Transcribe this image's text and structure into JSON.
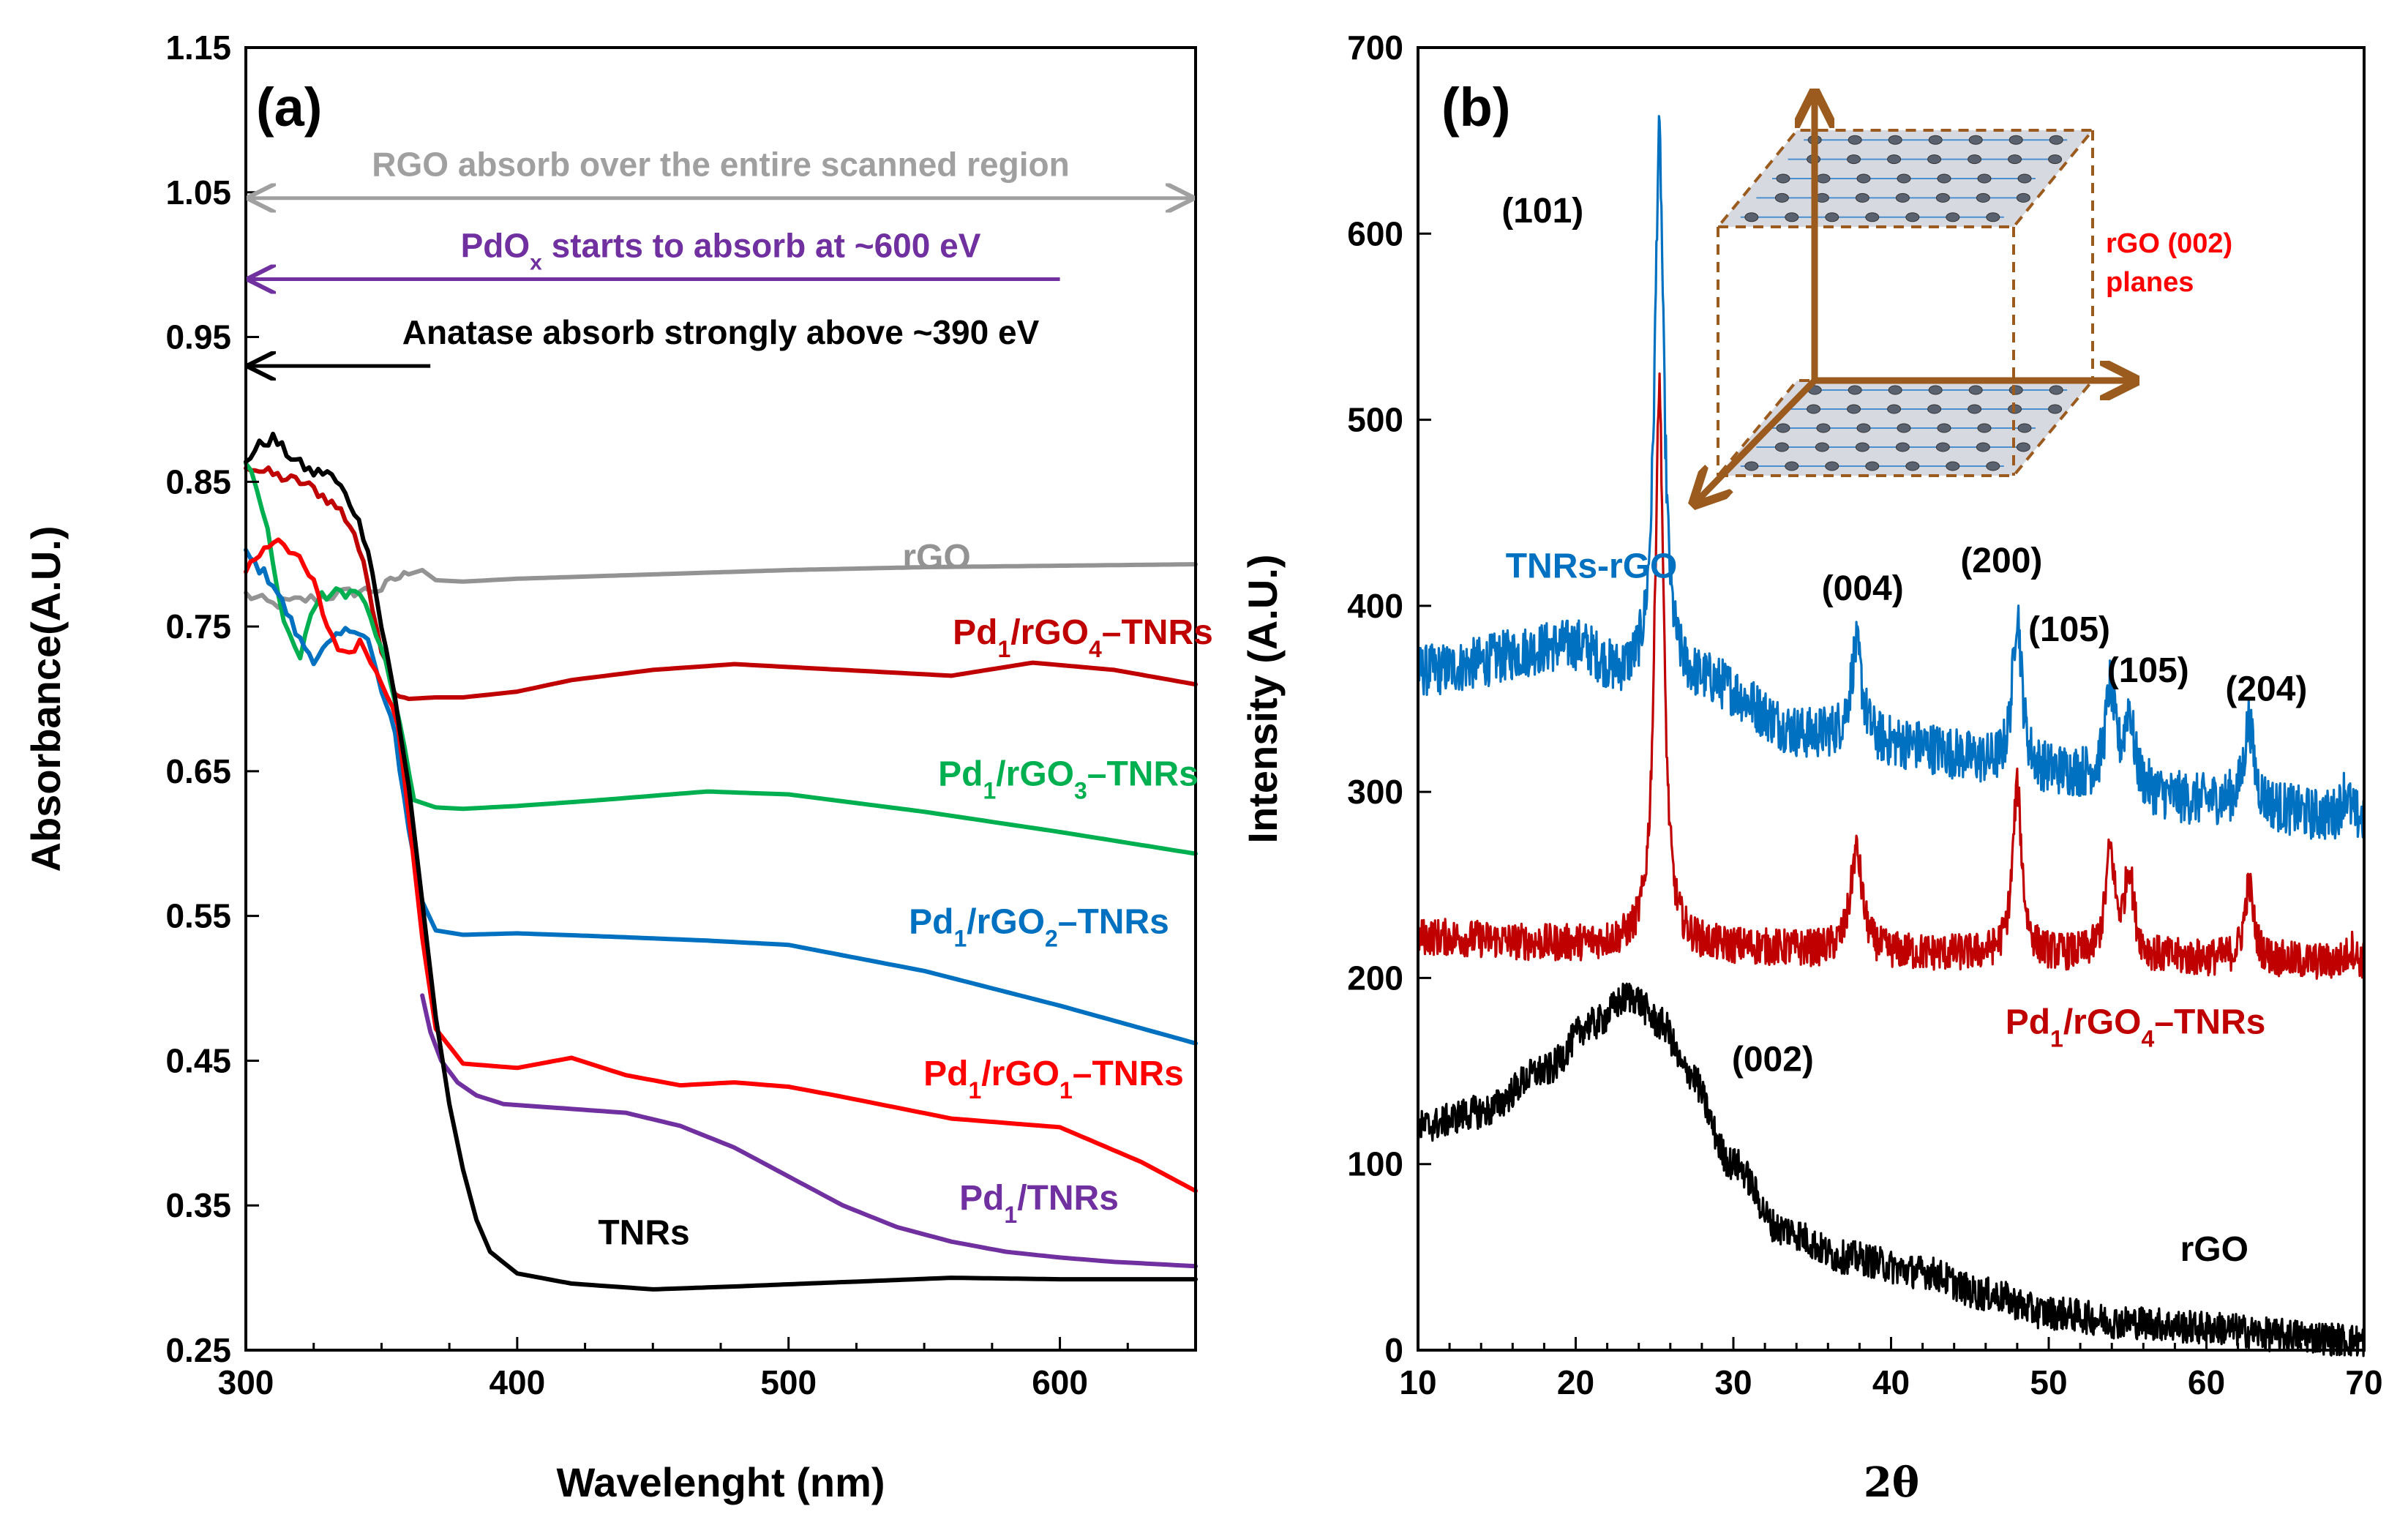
{
  "chart_data": [
    {
      "panel": "(a)",
      "type": "line",
      "xlabel": "Wavelenght (nm)",
      "ylabel": "Absorbance(A.U.)",
      "xlim": [
        300,
        650
      ],
      "ylim": [
        0.25,
        1.15
      ],
      "xticks": [
        "300",
        "400",
        "500",
        "600"
      ],
      "yticks": [
        "0.25",
        "0.35",
        "0.45",
        "0.55",
        "0.65",
        "0.75",
        "0.85",
        "0.95",
        "1.05",
        "1.15"
      ],
      "annotations": [
        {
          "text": "RGO absorb over the entire scanned region",
          "color": "#a0a0a0",
          "from_nm": 300,
          "to_nm": 650,
          "y": 1.046,
          "arrow": "both"
        },
        {
          "text_main": "PdO",
          "text_sub": "x",
          "text_rest": " starts to absorb at ~600 eV",
          "color": "#7030a0",
          "from_nm": 600,
          "to_nm": 300,
          "y": 0.99,
          "arrow": "left"
        },
        {
          "text": "Anatase absorb strongly above ~390 eV",
          "color": "#000000",
          "from_nm": 368,
          "to_nm": 300,
          "y": 0.93,
          "arrow": "left"
        }
      ],
      "series": [
        {
          "name": "rGO",
          "color": "#939393",
          "label_parts": [
            "rGO"
          ],
          "x": [
            300,
            310,
            320,
            330,
            340,
            350,
            355,
            360,
            365,
            370,
            380,
            400,
            450,
            500,
            550,
            600,
            650
          ],
          "y": [
            0.772,
            0.765,
            0.768,
            0.771,
            0.774,
            0.776,
            0.783,
            0.786,
            0.789,
            0.782,
            0.781,
            0.783,
            0.786,
            0.789,
            0.791,
            0.792,
            0.793
          ]
        },
        {
          "name": "Pd1/rGO4-TNRs",
          "color": "#c00000",
          "label_parts": [
            "Pd",
            "1",
            "/rGO",
            "4",
            "–TNRs"
          ],
          "x": [
            300,
            305,
            310,
            315,
            320,
            325,
            330,
            335,
            340,
            345,
            350,
            355,
            360,
            370,
            380,
            400,
            420,
            450,
            480,
            520,
            560,
            590,
            620,
            650
          ],
          "y": [
            0.862,
            0.858,
            0.855,
            0.852,
            0.85,
            0.845,
            0.838,
            0.83,
            0.815,
            0.78,
            0.735,
            0.705,
            0.7,
            0.701,
            0.701,
            0.705,
            0.713,
            0.72,
            0.724,
            0.72,
            0.716,
            0.725,
            0.72,
            0.71
          ]
        },
        {
          "name": "Pd1/rGO3-TNRs",
          "color": "#00b050",
          "label_parts": [
            "Pd",
            "1",
            "/rGO",
            "3",
            "–TNRs"
          ],
          "x": [
            300,
            304,
            308,
            312,
            316,
            320,
            324,
            328,
            335,
            342,
            348,
            355,
            362,
            370,
            380,
            400,
            430,
            470,
            500,
            550,
            600,
            650
          ],
          "y": [
            0.865,
            0.845,
            0.815,
            0.77,
            0.745,
            0.728,
            0.76,
            0.77,
            0.774,
            0.773,
            0.745,
            0.7,
            0.63,
            0.625,
            0.624,
            0.626,
            0.63,
            0.636,
            0.634,
            0.622,
            0.608,
            0.593
          ]
        },
        {
          "name": "Pd1/rGO2-TNRs",
          "color": "#0070c0",
          "label_parts": [
            "Pd",
            "1",
            "/rGO",
            "2",
            "–TNRs"
          ],
          "x": [
            300,
            305,
            310,
            315,
            320,
            325,
            330,
            335,
            340,
            345,
            350,
            355,
            360,
            365,
            370,
            380,
            400,
            430,
            470,
            500,
            550,
            600,
            650
          ],
          "y": [
            0.8,
            0.79,
            0.78,
            0.76,
            0.74,
            0.728,
            0.736,
            0.744,
            0.75,
            0.74,
            0.705,
            0.675,
            0.61,
            0.56,
            0.54,
            0.537,
            0.538,
            0.536,
            0.533,
            0.53,
            0.512,
            0.488,
            0.462
          ]
        },
        {
          "name": "Pd1/rGO1-TNRs",
          "color": "#ff0000",
          "label_parts": [
            "Pd",
            "1",
            "/rGO",
            "1",
            "–TNRs"
          ],
          "x": [
            300,
            305,
            312,
            318,
            325,
            330,
            336,
            342,
            348,
            352,
            356,
            360,
            365,
            370,
            380,
            400,
            420,
            440,
            460,
            480,
            500,
            520,
            560,
            600,
            630,
            650
          ],
          "y": [
            0.79,
            0.8,
            0.812,
            0.8,
            0.78,
            0.75,
            0.73,
            0.74,
            0.722,
            0.705,
            0.68,
            0.62,
            0.535,
            0.472,
            0.448,
            0.445,
            0.452,
            0.44,
            0.433,
            0.435,
            0.432,
            0.425,
            0.41,
            0.404,
            0.38,
            0.36
          ]
        },
        {
          "name": "Pd1/TNRs",
          "color": "#7030a0",
          "label_parts": [
            "Pd",
            "1",
            "/TNRs"
          ],
          "x": [
            365,
            368,
            372,
            378,
            385,
            395,
            410,
            440,
            460,
            480,
            500,
            520,
            540,
            560,
            580,
            600,
            620,
            650
          ],
          "y": [
            0.495,
            0.47,
            0.45,
            0.435,
            0.426,
            0.42,
            0.418,
            0.414,
            0.405,
            0.39,
            0.37,
            0.35,
            0.335,
            0.325,
            0.318,
            0.314,
            0.311,
            0.308
          ]
        },
        {
          "name": "TNRs",
          "color": "#000000",
          "label_parts": [
            "TNRs"
          ],
          "x": [
            300,
            305,
            310,
            315,
            320,
            325,
            330,
            335,
            340,
            345,
            350,
            355,
            360,
            365,
            370,
            375,
            380,
            385,
            390,
            400,
            420,
            450,
            480,
            520,
            560,
            600,
            650
          ],
          "y": [
            0.865,
            0.875,
            0.88,
            0.87,
            0.862,
            0.856,
            0.857,
            0.846,
            0.83,
            0.805,
            0.75,
            0.7,
            0.64,
            0.56,
            0.48,
            0.42,
            0.375,
            0.34,
            0.318,
            0.303,
            0.296,
            0.292,
            0.294,
            0.297,
            0.3,
            0.299,
            0.299
          ]
        }
      ]
    },
    {
      "panel": "(b)",
      "type": "line",
      "xlabel": "2θ",
      "ylabel": "Intensity (A.U.)",
      "xlim": [
        10,
        70
      ],
      "ylim": [
        0,
        700
      ],
      "xticks": [
        "10",
        "20",
        "30",
        "40",
        "50",
        "60",
        "70"
      ],
      "yticks": [
        "0",
        "100",
        "200",
        "300",
        "400",
        "500",
        "600",
        "700"
      ],
      "inset_label": [
        "rGO (002)",
        "planes"
      ],
      "peak_labels": [
        {
          "text": "(101)",
          "x": 17.9,
          "y": 606
        },
        {
          "text": "(004)",
          "x": 38.2,
          "y": 403
        },
        {
          "text": "(200)",
          "x": 47.0,
          "y": 418
        },
        {
          "text": "(105)",
          "x": 51.3,
          "y": 381
        },
        {
          "text": "(105)",
          "x": 56.3,
          "y": 359
        },
        {
          "text": "(204)",
          "x": 63.8,
          "y": 349
        },
        {
          "text": "(002)",
          "x": 32.5,
          "y": 150
        }
      ],
      "series": [
        {
          "name": "TNRs-rGO",
          "color": "#0070c0",
          "label_parts": [
            "TNRs-rGO"
          ],
          "baseline": [
            [
              10,
              365
            ],
            [
              20,
              378
            ],
            [
              23,
              362
            ],
            [
              28,
              358
            ],
            [
              35,
              330
            ],
            [
              40,
              325
            ],
            [
              50,
              310
            ],
            [
              60,
              295
            ],
            [
              70,
              285
            ]
          ],
          "peaks": [
            [
              25.3,
              290,
              0.35
            ],
            [
              37.8,
              50,
              0.45
            ],
            [
              48.0,
              85,
              0.35
            ],
            [
              53.9,
              50,
              0.35
            ],
            [
              55.1,
              40,
              0.35
            ],
            [
              62.7,
              45,
              0.35
            ],
            [
              68.8,
              15,
              0.3
            ]
          ],
          "noise": 14
        },
        {
          "name": "Pd1/rGO4-TNRs",
          "color": "#c00000",
          "label_parts": [
            "Pd",
            "1",
            "/rGO",
            "4",
            "–TNRs"
          ],
          "baseline": [
            [
              10,
              222
            ],
            [
              20,
              218
            ],
            [
              30,
              216
            ],
            [
              40,
              213
            ],
            [
              50,
              212
            ],
            [
              60,
              210
            ],
            [
              70,
              208
            ]
          ],
          "peaks": [
            [
              25.3,
              300,
              0.35
            ],
            [
              37.8,
              55,
              0.45
            ],
            [
              48.0,
              90,
              0.35
            ],
            [
              53.9,
              55,
              0.35
            ],
            [
              55.1,
              45,
              0.35
            ],
            [
              62.7,
              40,
              0.35
            ],
            [
              69.2,
              8,
              0.3
            ]
          ],
          "noise": 10
        },
        {
          "name": "rGO",
          "color": "#000000",
          "label_parts": [
            "rGO"
          ],
          "baseline": [
            [
              10,
              120
            ],
            [
              14,
              128
            ],
            [
              18,
              150
            ],
            [
              21,
              175
            ],
            [
              23.5,
              190
            ],
            [
              25.5,
              175
            ],
            [
              27,
              150
            ],
            [
              30,
              100
            ],
            [
              33,
              65
            ],
            [
              37,
              50
            ],
            [
              42,
              42
            ],
            [
              46,
              30
            ],
            [
              50,
              20
            ],
            [
              55,
              15
            ],
            [
              60,
              12
            ],
            [
              65,
              8
            ],
            [
              70,
              5
            ]
          ],
          "peaks": [],
          "noise": 9
        }
      ]
    }
  ]
}
